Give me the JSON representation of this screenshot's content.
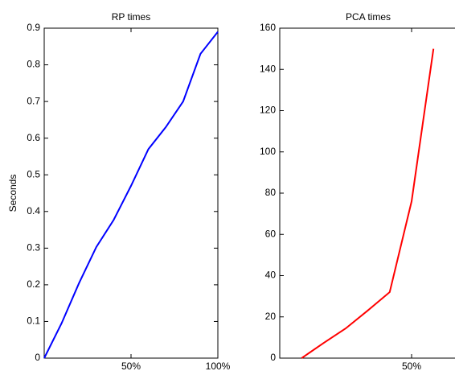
{
  "chart_data": [
    {
      "type": "line",
      "title": "RP times",
      "y_label": "Seconds",
      "x": [
        0,
        10,
        20,
        30,
        40,
        50,
        60,
        70,
        80,
        90,
        100
      ],
      "series": [
        {
          "color": "#0000ff",
          "values": [
            0,
            0.095,
            0.204,
            0.303,
            0.377,
            0.47,
            0.57,
            0.63,
            0.7,
            0.83,
            0.89
          ]
        }
      ],
      "xlim": [
        0,
        100
      ],
      "xticks": [
        {
          "value": 50,
          "label": "50%"
        },
        {
          "value": 100,
          "label": "100%"
        }
      ],
      "ylim": [
        0,
        0.9
      ],
      "yticks": [
        0,
        0.1,
        0.2,
        0.3,
        0.4,
        0.5,
        0.6,
        0.7,
        0.8,
        0.9
      ]
    },
    {
      "type": "line",
      "title": "PCA times",
      "x": [
        8.3,
        16.7,
        25,
        33.3,
        41.7,
        50,
        58.3
      ],
      "series": [
        {
          "color": "#ff0000",
          "values": [
            0,
            7.4,
            14.4,
            23,
            32,
            76,
            150
          ]
        }
      ],
      "xlim": [
        0,
        100
      ],
      "xticks": [
        {
          "value": 50,
          "label": "50%"
        }
      ],
      "ylim": [
        0,
        160
      ],
      "yticks": [
        0,
        20,
        40,
        60,
        80,
        100,
        120,
        140,
        160
      ]
    }
  ]
}
